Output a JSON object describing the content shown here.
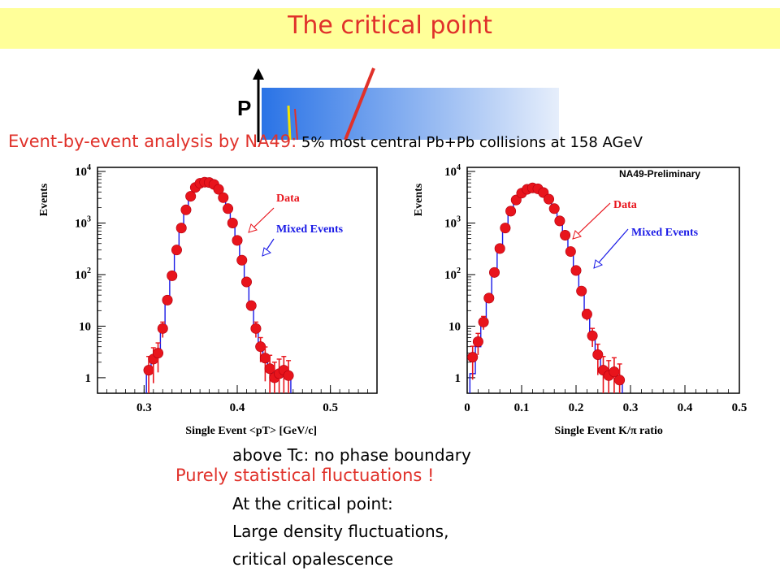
{
  "title": "The critical point",
  "phase_axis_label": "P",
  "event_line": {
    "lead": "Event-by-event analysis by NA49:",
    "rest": " 5% most central Pb+Pb collisions at 158 AGeV"
  },
  "colors": {
    "data": "#e8141c",
    "mixed": "#1a1ae6",
    "title_bg": "#ffff99",
    "accent": "#e0312a"
  },
  "chart_data": [
    {
      "type": "scatter",
      "xlabel": "Single Event <pT> [GeV/c]",
      "ylabel": "Events",
      "log_y": true,
      "xlim": [
        0.25,
        0.55
      ],
      "ylim": [
        0.5,
        12000
      ],
      "x_ticks": [
        "0.3",
        "0.4",
        "0.5"
      ],
      "y_ticks": [
        "1",
        "10",
        "10^2",
        "10^3",
        "10^4"
      ],
      "annotations": [
        "Data",
        "Mixed Events"
      ],
      "series": [
        {
          "name": "Data",
          "x": [
            0.305,
            0.31,
            0.315,
            0.32,
            0.325,
            0.33,
            0.335,
            0.34,
            0.345,
            0.35,
            0.355,
            0.36,
            0.365,
            0.37,
            0.375,
            0.38,
            0.385,
            0.39,
            0.395,
            0.4,
            0.405,
            0.41,
            0.415,
            0.42,
            0.425,
            0.43,
            0.435,
            0.44,
            0.445,
            0.45,
            0.455
          ],
          "values": [
            1.4,
            2.3,
            3,
            9,
            32,
            95,
            300,
            800,
            1800,
            3300,
            4900,
            5900,
            6200,
            6100,
            5600,
            4500,
            3100,
            1900,
            1000,
            460,
            190,
            72,
            25,
            9,
            4,
            2.4,
            1.5,
            1,
            1.2,
            1.4,
            1.1
          ]
        },
        {
          "name": "Mixed Events",
          "x": [
            0.305,
            0.31,
            0.315,
            0.32,
            0.325,
            0.33,
            0.335,
            0.34,
            0.345,
            0.35,
            0.355,
            0.36,
            0.365,
            0.37,
            0.375,
            0.38,
            0.385,
            0.39,
            0.395,
            0.4,
            0.405,
            0.41,
            0.415,
            0.42,
            0.425,
            0.43,
            0.435,
            0.44,
            0.445,
            0.45,
            0.455
          ],
          "values": [
            1.2,
            2,
            3.2,
            8,
            30,
            90,
            290,
            780,
            1750,
            3250,
            4850,
            5850,
            6200,
            6050,
            5550,
            4450,
            3050,
            1850,
            980,
            450,
            185,
            70,
            24,
            8.5,
            3.8,
            2.2,
            1.4,
            1,
            1.1,
            1.3,
            1
          ]
        }
      ]
    },
    {
      "type": "scatter",
      "xlabel": "Single Event K/π ratio",
      "ylabel": "Events",
      "log_y": true,
      "xlim": [
        0,
        0.5
      ],
      "ylim": [
        0.5,
        12000
      ],
      "x_ticks": [
        "0",
        "0.1",
        "0.2",
        "0.3",
        "0.4",
        "0.5"
      ],
      "y_ticks": [
        "1",
        "10",
        "10^2",
        "10^3",
        "10^4"
      ],
      "annotations": [
        "NA49-Preliminary",
        "Data",
        "Mixed Events"
      ],
      "series": [
        {
          "name": "Data",
          "x": [
            0.01,
            0.02,
            0.03,
            0.04,
            0.05,
            0.06,
            0.07,
            0.08,
            0.09,
            0.1,
            0.11,
            0.12,
            0.13,
            0.14,
            0.15,
            0.16,
            0.17,
            0.18,
            0.19,
            0.2,
            0.21,
            0.22,
            0.23,
            0.24,
            0.25,
            0.26,
            0.27,
            0.28
          ],
          "values": [
            2.5,
            5,
            12,
            35,
            110,
            320,
            800,
            1700,
            2800,
            3800,
            4500,
            4800,
            4600,
            3900,
            2900,
            1900,
            1100,
            580,
            280,
            120,
            48,
            17,
            6.5,
            2.8,
            1.4,
            1.1,
            1.3,
            0.9
          ]
        },
        {
          "name": "Mixed Events",
          "x": [
            0.01,
            0.02,
            0.03,
            0.04,
            0.05,
            0.06,
            0.07,
            0.08,
            0.09,
            0.1,
            0.11,
            0.12,
            0.13,
            0.14,
            0.15,
            0.16,
            0.17,
            0.18,
            0.19,
            0.2,
            0.21,
            0.22,
            0.23,
            0.24,
            0.25,
            0.26,
            0.27,
            0.28
          ],
          "values": [
            1.2,
            4,
            11,
            33,
            105,
            310,
            790,
            1680,
            2780,
            3780,
            4480,
            4780,
            4580,
            3880,
            2880,
            1880,
            1080,
            570,
            275,
            118,
            46,
            16,
            6,
            2.6,
            1.3,
            1,
            1.1,
            0.8
          ]
        }
      ]
    }
  ],
  "behind_text": "above Tc: no phase boundary",
  "statistical": "Purely statistical fluctuations !",
  "critical": {
    "line1": "At the critical point:",
    "line2": "Large density fluctuations,",
    "line3": "critical opalescence"
  }
}
